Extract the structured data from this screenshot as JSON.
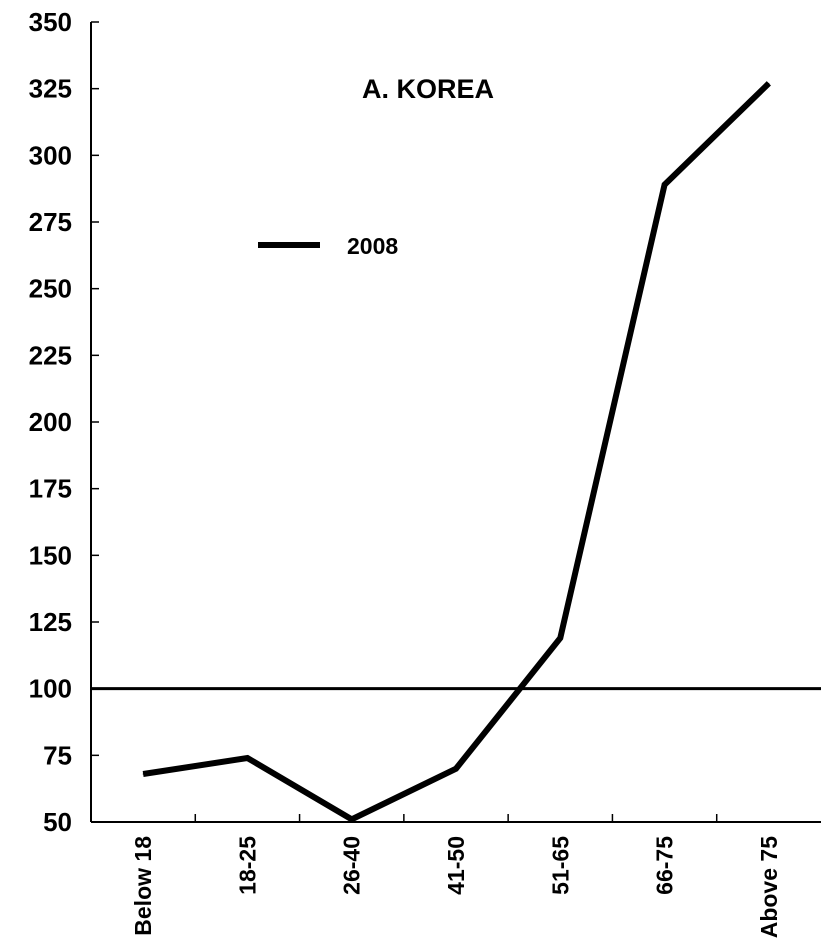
{
  "chart_data": {
    "type": "line",
    "title": "A. KOREA",
    "categories": [
      "Below 18",
      "18-25",
      "26-40",
      "41-50",
      "51-65",
      "66-75",
      "Above 75"
    ],
    "series": [
      {
        "name": "2008",
        "values": [
          68,
          74,
          51,
          70,
          119,
          289,
          327
        ],
        "color": "#000000"
      }
    ],
    "yticks": [
      50,
      75,
      100,
      125,
      150,
      175,
      200,
      225,
      250,
      275,
      300,
      325,
      350
    ],
    "ylim": [
      50,
      350
    ],
    "reference_line": 100,
    "legend_position": "top-left",
    "grid": false
  }
}
